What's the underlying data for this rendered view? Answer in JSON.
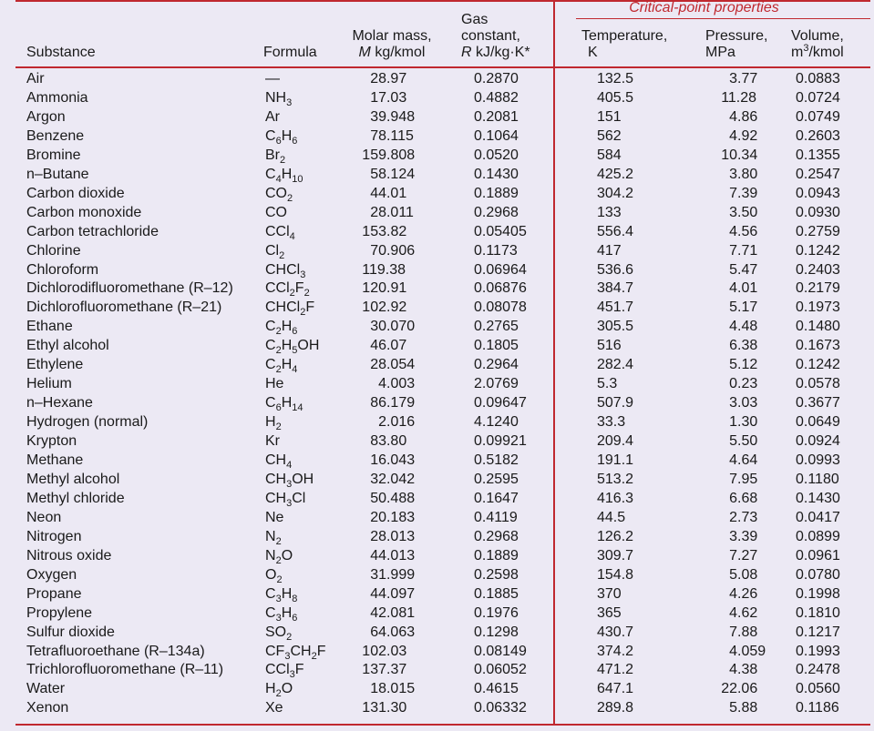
{
  "headers": {
    "substance": "Substance",
    "formula": "Formula",
    "molar_line1": "Molar mass,",
    "molar_sym": "M",
    "molar_unit": "kg/kmol",
    "gas_line1": "Gas",
    "gas_line2": "constant,",
    "gas_sym": "R",
    "gas_unit": "kJ/kg·K*",
    "critical_title": "Critical-point properties",
    "temp_line1": "Temperature,",
    "temp_unit": "K",
    "press_line1": "Pressure,",
    "press_unit": "MPa",
    "vol_line1": "Volume,",
    "vol_unit_base": "m",
    "vol_unit_sup": "3",
    "vol_unit_rest": "/kmol"
  },
  "rows": [
    {
      "substance": "Air",
      "formula": [
        [
          "t",
          "—"
        ]
      ],
      "molar_mass": "28.97",
      "gas_constant": "0.2870",
      "temperature": "132.5",
      "pressure": "3.77",
      "volume": "0.0883"
    },
    {
      "substance": "Ammonia",
      "formula": [
        [
          "t",
          "NH"
        ],
        [
          "s",
          "3"
        ]
      ],
      "molar_mass": "17.03",
      "gas_constant": "0.4882",
      "temperature": "405.5",
      "pressure": "11.28",
      "volume": "0.0724"
    },
    {
      "substance": "Argon",
      "formula": [
        [
          "t",
          "Ar"
        ]
      ],
      "molar_mass": "39.948",
      "gas_constant": "0.2081",
      "temperature": "151",
      "pressure": "4.86",
      "volume": "0.0749"
    },
    {
      "substance": "Benzene",
      "formula": [
        [
          "t",
          "C"
        ],
        [
          "s",
          "6"
        ],
        [
          "t",
          "H"
        ],
        [
          "s",
          "6"
        ]
      ],
      "molar_mass": "78.115",
      "gas_constant": "0.1064",
      "temperature": "562",
      "pressure": "4.92",
      "volume": "0.2603"
    },
    {
      "substance": "Bromine",
      "formula": [
        [
          "t",
          "Br"
        ],
        [
          "s",
          "2"
        ]
      ],
      "molar_mass": "159.808",
      "gas_constant": "0.0520",
      "temperature": "584",
      "pressure": "10.34",
      "volume": "0.1355"
    },
    {
      "substance": "n–Butane",
      "formula": [
        [
          "t",
          "C"
        ],
        [
          "s",
          "4"
        ],
        [
          "t",
          "H"
        ],
        [
          "s",
          "10"
        ]
      ],
      "molar_mass": "58.124",
      "gas_constant": "0.1430",
      "temperature": "425.2",
      "pressure": "3.80",
      "volume": "0.2547"
    },
    {
      "substance": "Carbon dioxide",
      "formula": [
        [
          "t",
          "CO"
        ],
        [
          "s",
          "2"
        ]
      ],
      "molar_mass": "44.01",
      "gas_constant": "0.1889",
      "temperature": "304.2",
      "pressure": "7.39",
      "volume": "0.0943"
    },
    {
      "substance": "Carbon monoxide",
      "formula": [
        [
          "t",
          "CO"
        ]
      ],
      "molar_mass": "28.011",
      "gas_constant": "0.2968",
      "temperature": "133",
      "pressure": "3.50",
      "volume": "0.0930"
    },
    {
      "substance": "Carbon tetrachloride",
      "formula": [
        [
          "t",
          "CCl"
        ],
        [
          "s",
          "4"
        ]
      ],
      "molar_mass": "153.82",
      "gas_constant": "0.05405",
      "temperature": "556.4",
      "pressure": "4.56",
      "volume": "0.2759"
    },
    {
      "substance": "Chlorine",
      "formula": [
        [
          "t",
          "Cl"
        ],
        [
          "s",
          "2"
        ]
      ],
      "molar_mass": "70.906",
      "gas_constant": "0.1173",
      "temperature": "417",
      "pressure": "7.71",
      "volume": "0.1242"
    },
    {
      "substance": "Chloroform",
      "formula": [
        [
          "t",
          "CHCl"
        ],
        [
          "s",
          "3"
        ]
      ],
      "molar_mass": "119.38",
      "gas_constant": "0.06964",
      "temperature": "536.6",
      "pressure": "5.47",
      "volume": "0.2403"
    },
    {
      "substance": "Dichlorodifluoromethane (R–12)",
      "formula": [
        [
          "t",
          "CCl"
        ],
        [
          "s",
          "2"
        ],
        [
          "t",
          "F"
        ],
        [
          "s",
          "2"
        ]
      ],
      "molar_mass": "120.91",
      "gas_constant": "0.06876",
      "temperature": "384.7",
      "pressure": "4.01",
      "volume": "0.2179"
    },
    {
      "substance": "Dichlorofluoromethane (R–21)",
      "formula": [
        [
          "t",
          "CHCl"
        ],
        [
          "s",
          "2"
        ],
        [
          "t",
          "F"
        ]
      ],
      "molar_mass": "102.92",
      "gas_constant": "0.08078",
      "temperature": "451.7",
      "pressure": "5.17",
      "volume": "0.1973"
    },
    {
      "substance": "Ethane",
      "formula": [
        [
          "t",
          "C"
        ],
        [
          "s",
          "2"
        ],
        [
          "t",
          "H"
        ],
        [
          "s",
          "6"
        ]
      ],
      "molar_mass": "30.070",
      "gas_constant": "0.2765",
      "temperature": "305.5",
      "pressure": "4.48",
      "volume": "0.1480"
    },
    {
      "substance": "Ethyl alcohol",
      "formula": [
        [
          "t",
          "C"
        ],
        [
          "s",
          "2"
        ],
        [
          "t",
          "H"
        ],
        [
          "s",
          "5"
        ],
        [
          "t",
          "OH"
        ]
      ],
      "molar_mass": "46.07",
      "gas_constant": "0.1805",
      "temperature": "516",
      "pressure": "6.38",
      "volume": "0.1673"
    },
    {
      "substance": "Ethylene",
      "formula": [
        [
          "t",
          "C"
        ],
        [
          "s",
          "2"
        ],
        [
          "t",
          "H"
        ],
        [
          "s",
          "4"
        ]
      ],
      "molar_mass": "28.054",
      "gas_constant": "0.2964",
      "temperature": "282.4",
      "pressure": "5.12",
      "volume": "0.1242"
    },
    {
      "substance": "Helium",
      "formula": [
        [
          "t",
          "He"
        ]
      ],
      "molar_mass": "4.003",
      "gas_constant": "2.0769",
      "temperature": "5.3",
      "pressure": "0.23",
      "volume": "0.0578"
    },
    {
      "substance": "n–Hexane",
      "formula": [
        [
          "t",
          "C"
        ],
        [
          "s",
          "6"
        ],
        [
          "t",
          "H"
        ],
        [
          "s",
          "14"
        ]
      ],
      "molar_mass": "86.179",
      "gas_constant": "0.09647",
      "temperature": "507.9",
      "pressure": "3.03",
      "volume": "0.3677"
    },
    {
      "substance": "Hydrogen (normal)",
      "formula": [
        [
          "t",
          "H"
        ],
        [
          "s",
          "2"
        ]
      ],
      "molar_mass": "2.016",
      "gas_constant": "4.1240",
      "temperature": "33.3",
      "pressure": "1.30",
      "volume": "0.0649"
    },
    {
      "substance": "Krypton",
      "formula": [
        [
          "t",
          "Kr"
        ]
      ],
      "molar_mass": "83.80",
      "gas_constant": "0.09921",
      "temperature": "209.4",
      "pressure": "5.50",
      "volume": "0.0924"
    },
    {
      "substance": "Methane",
      "formula": [
        [
          "t",
          "CH"
        ],
        [
          "s",
          "4"
        ]
      ],
      "molar_mass": "16.043",
      "gas_constant": "0.5182",
      "temperature": "191.1",
      "pressure": "4.64",
      "volume": "0.0993"
    },
    {
      "substance": "Methyl alcohol",
      "formula": [
        [
          "t",
          "CH"
        ],
        [
          "s",
          "3"
        ],
        [
          "t",
          "OH"
        ]
      ],
      "molar_mass": "32.042",
      "gas_constant": "0.2595",
      "temperature": "513.2",
      "pressure": "7.95",
      "volume": "0.1180"
    },
    {
      "substance": "Methyl chloride",
      "formula": [
        [
          "t",
          "CH"
        ],
        [
          "s",
          "3"
        ],
        [
          "t",
          "Cl"
        ]
      ],
      "molar_mass": "50.488",
      "gas_constant": "0.1647",
      "temperature": "416.3",
      "pressure": "6.68",
      "volume": "0.1430"
    },
    {
      "substance": "Neon",
      "formula": [
        [
          "t",
          "Ne"
        ]
      ],
      "molar_mass": "20.183",
      "gas_constant": "0.4119",
      "temperature": "44.5",
      "pressure": "2.73",
      "volume": "0.0417"
    },
    {
      "substance": "Nitrogen",
      "formula": [
        [
          "t",
          "N"
        ],
        [
          "s",
          "2"
        ]
      ],
      "molar_mass": "28.013",
      "gas_constant": "0.2968",
      "temperature": "126.2",
      "pressure": "3.39",
      "volume": "0.0899"
    },
    {
      "substance": "Nitrous oxide",
      "formula": [
        [
          "t",
          "N"
        ],
        [
          "s",
          "2"
        ],
        [
          "t",
          "O"
        ]
      ],
      "molar_mass": "44.013",
      "gas_constant": "0.1889",
      "temperature": "309.7",
      "pressure": "7.27",
      "volume": "0.0961"
    },
    {
      "substance": "Oxygen",
      "formula": [
        [
          "t",
          "O"
        ],
        [
          "s",
          "2"
        ]
      ],
      "molar_mass": "31.999",
      "gas_constant": "0.2598",
      "temperature": "154.8",
      "pressure": "5.08",
      "volume": "0.0780"
    },
    {
      "substance": "Propane",
      "formula": [
        [
          "t",
          "C"
        ],
        [
          "s",
          "3"
        ],
        [
          "t",
          "H"
        ],
        [
          "s",
          "8"
        ]
      ],
      "molar_mass": "44.097",
      "gas_constant": "0.1885",
      "temperature": "370",
      "pressure": "4.26",
      "volume": "0.1998"
    },
    {
      "substance": "Propylene",
      "formula": [
        [
          "t",
          "C"
        ],
        [
          "s",
          "3"
        ],
        [
          "t",
          "H"
        ],
        [
          "s",
          "6"
        ]
      ],
      "molar_mass": "42.081",
      "gas_constant": "0.1976",
      "temperature": "365",
      "pressure": "4.62",
      "volume": "0.1810"
    },
    {
      "substance": "Sulfur dioxide",
      "formula": [
        [
          "t",
          "SO"
        ],
        [
          "s",
          "2"
        ]
      ],
      "molar_mass": "64.063",
      "gas_constant": "0.1298",
      "temperature": "430.7",
      "pressure": "7.88",
      "volume": "0.1217"
    },
    {
      "substance": "Tetrafluoroethane (R–134a)",
      "formula": [
        [
          "t",
          "CF"
        ],
        [
          "s",
          "3"
        ],
        [
          "t",
          "CH"
        ],
        [
          "s",
          "2"
        ],
        [
          "t",
          "F"
        ]
      ],
      "molar_mass": "102.03",
      "gas_constant": "0.08149",
      "temperature": "374.2",
      "pressure": "4.059",
      "volume": "0.1993"
    },
    {
      "substance": "Trichlorofluoromethane (R–11)",
      "formula": [
        [
          "t",
          "CCl"
        ],
        [
          "s",
          "3"
        ],
        [
          "t",
          "F"
        ]
      ],
      "molar_mass": "137.37",
      "gas_constant": "0.06052",
      "temperature": "471.2",
      "pressure": "4.38",
      "volume": "0.2478"
    },
    {
      "substance": "Water",
      "formula": [
        [
          "t",
          "H"
        ],
        [
          "s",
          "2"
        ],
        [
          "t",
          "O"
        ]
      ],
      "molar_mass": "18.015",
      "gas_constant": "0.4615",
      "temperature": "647.1",
      "pressure": "22.06",
      "volume": "0.0560"
    },
    {
      "substance": "Xenon",
      "formula": [
        [
          "t",
          "Xe"
        ]
      ],
      "molar_mass": "131.30",
      "gas_constant": "0.06332",
      "temperature": "289.8",
      "pressure": "5.88",
      "volume": "0.1186"
    }
  ]
}
